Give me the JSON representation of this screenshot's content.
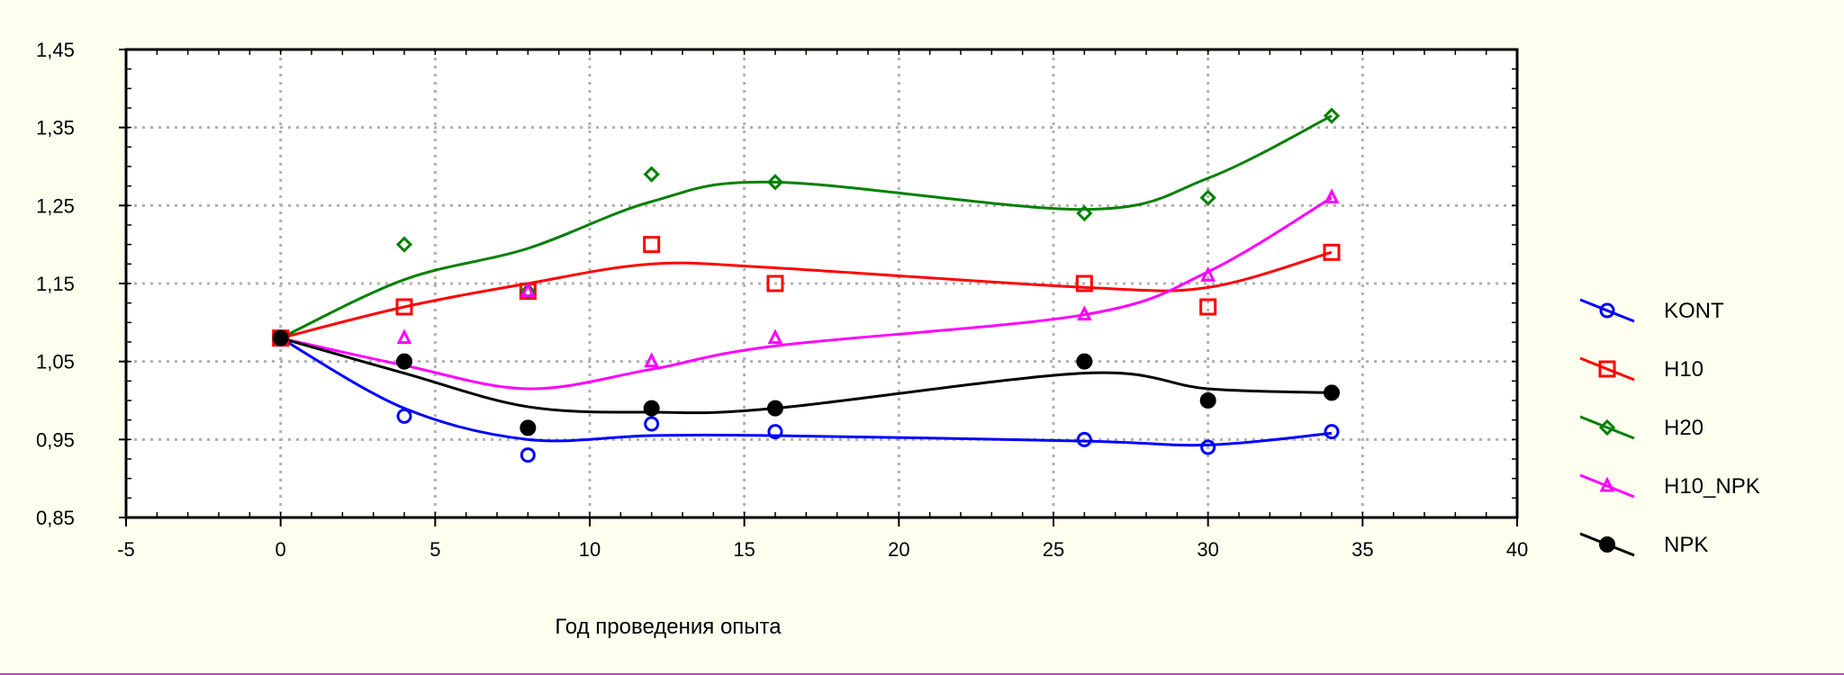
{
  "chart_data": {
    "type": "scatter",
    "xlabel": "Год проведения опыта",
    "ylabel": "",
    "xlim": [
      -5,
      40
    ],
    "ylim": [
      0.85,
      1.45
    ],
    "grid": true,
    "legend_position": "right",
    "x_ticks": [
      "-5",
      "0",
      "5",
      "10",
      "15",
      "20",
      "25",
      "30",
      "35",
      "40"
    ],
    "x_tick_values": [
      -5,
      0,
      5,
      10,
      15,
      20,
      25,
      30,
      35,
      40
    ],
    "y_ticks": [
      "0,85",
      "0,95",
      "1,05",
      "1,15",
      "1,25",
      "1,35",
      "1,45"
    ],
    "y_tick_values": [
      0.85,
      0.95,
      1.05,
      1.15,
      1.25,
      1.35,
      1.45
    ],
    "x": [
      0,
      4,
      8,
      12,
      16,
      26,
      30,
      34
    ],
    "series": [
      {
        "name": "KONT",
        "color": "#0000ff",
        "marker": "circle-open",
        "values": [
          1.08,
          0.98,
          0.93,
          0.97,
          0.96,
          0.95,
          0.94,
          0.96
        ],
        "curve": [
          1.08,
          0.99,
          0.95,
          0.955,
          0.955,
          0.948,
          0.943,
          0.958
        ]
      },
      {
        "name": "H10",
        "color": "#ff0000",
        "marker": "square-open",
        "values": [
          1.08,
          1.12,
          1.14,
          1.2,
          1.15,
          1.15,
          1.12,
          1.19
        ],
        "curve": [
          1.08,
          1.12,
          1.15,
          1.175,
          1.17,
          1.145,
          1.145,
          1.19
        ]
      },
      {
        "name": "H20",
        "color": "#008000",
        "marker": "diamond-open",
        "values": [
          1.08,
          1.2,
          1.14,
          1.29,
          1.28,
          1.24,
          1.26,
          1.365
        ],
        "curve": [
          1.08,
          1.155,
          1.195,
          1.255,
          1.28,
          1.245,
          1.285,
          1.365
        ]
      },
      {
        "name": "H10_NPK",
        "color": "#ff00ff",
        "marker": "triangle-open",
        "values": [
          1.08,
          1.08,
          1.14,
          1.05,
          1.08,
          1.11,
          1.16,
          1.26
        ],
        "curve": [
          1.08,
          1.045,
          1.015,
          1.04,
          1.07,
          1.11,
          1.165,
          1.26
        ]
      },
      {
        "name": "NPK",
        "color": "#000000",
        "marker": "circle-filled",
        "values": [
          1.08,
          1.05,
          0.965,
          0.99,
          0.99,
          1.05,
          1.0,
          1.01
        ],
        "curve": [
          1.08,
          1.035,
          0.992,
          0.985,
          0.99,
          1.035,
          1.015,
          1.01
        ]
      }
    ]
  }
}
